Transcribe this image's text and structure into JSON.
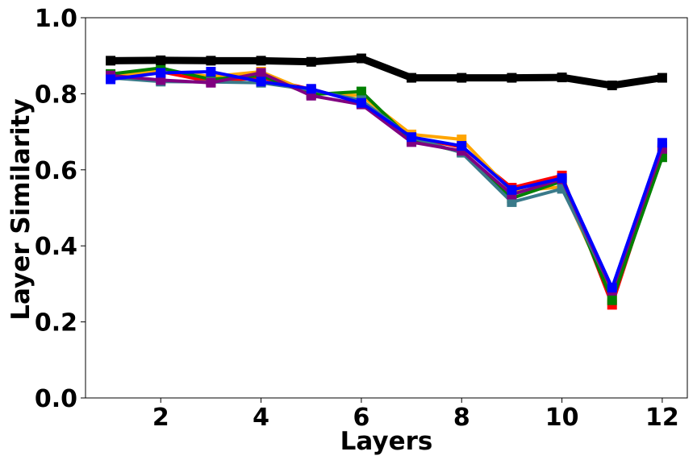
{
  "chart_data": {
    "type": "line",
    "title": "",
    "xlabel": "Layers",
    "ylabel": "Layer Similarity",
    "xlim": [
      0.5,
      12.5
    ],
    "ylim": [
      0.0,
      1.0
    ],
    "x_ticks": [
      2,
      4,
      6,
      8,
      10,
      12
    ],
    "y_ticks": [
      0.0,
      0.2,
      0.4,
      0.6,
      0.8,
      1.0
    ],
    "y_tick_labels": [
      "0.0",
      "0.2",
      "0.4",
      "0.6",
      "0.8",
      "1.0"
    ],
    "grid": false,
    "x": [
      1,
      2,
      3,
      4,
      5,
      6,
      7,
      8,
      9,
      10,
      11,
      12
    ],
    "series": [
      {
        "color": "#000000",
        "width": 9,
        "values": [
          0.887,
          0.888,
          0.887,
          0.887,
          0.884,
          0.893,
          0.842,
          0.842,
          0.842,
          0.843,
          0.822,
          0.842
        ]
      },
      {
        "color": "#ff0000",
        "width": 4,
        "values": [
          0.85,
          0.858,
          0.832,
          0.842,
          0.812,
          0.778,
          0.685,
          0.66,
          0.553,
          0.585,
          0.245,
          0.65
        ]
      },
      {
        "color": "#ffa500",
        "width": 4,
        "values": [
          0.845,
          0.863,
          0.845,
          0.858,
          0.803,
          0.795,
          0.693,
          0.68,
          0.543,
          0.555,
          0.268,
          0.64
        ]
      },
      {
        "color": "#008000",
        "width": 4,
        "values": [
          0.852,
          0.868,
          0.838,
          0.848,
          0.798,
          0.806,
          0.678,
          0.647,
          0.525,
          0.57,
          0.257,
          0.633
        ]
      },
      {
        "color": "#3a7a8a",
        "width": 4,
        "values": [
          0.842,
          0.832,
          0.831,
          0.829,
          0.81,
          0.783,
          0.685,
          0.645,
          0.515,
          0.55,
          0.285,
          0.66
        ]
      },
      {
        "color": "#800080",
        "width": 4,
        "values": [
          0.848,
          0.836,
          0.829,
          0.855,
          0.795,
          0.772,
          0.673,
          0.65,
          0.535,
          0.575,
          0.282,
          0.655
        ]
      },
      {
        "color": "#0000ff",
        "width": 4,
        "values": [
          0.838,
          0.855,
          0.858,
          0.832,
          0.813,
          0.776,
          0.686,
          0.663,
          0.547,
          0.578,
          0.29,
          0.671
        ]
      }
    ]
  }
}
